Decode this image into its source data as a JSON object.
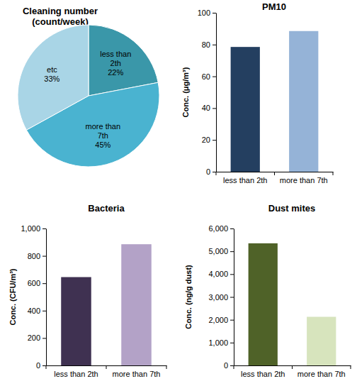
{
  "chart_data": [
    {
      "type": "pie",
      "title": "Cleaning number (count/week)",
      "categories": [
        "less than 2th",
        "more than 7th",
        "etc"
      ],
      "values": [
        22,
        45,
        33
      ],
      "value_labels": [
        "22%",
        "45%",
        "33%"
      ],
      "colors": [
        "#3a97a9",
        "#4ab3d0",
        "#a9d5e6"
      ],
      "data_labels": true
    },
    {
      "type": "bar",
      "title": "PM10",
      "ylabel": "Conc. (μg/m³)",
      "categories": [
        "less than 2th",
        "more than 7th"
      ],
      "values": [
        78.5,
        88.5
      ],
      "colors": [
        "#243f60",
        "#95b3d7"
      ],
      "ylim": [
        0,
        100
      ],
      "yticks": [
        0,
        20,
        40,
        60,
        80,
        100
      ],
      "grid": false
    },
    {
      "type": "bar",
      "title": "Bacteria",
      "ylabel": "Conc. (CFU/m³)",
      "categories": [
        "less than 2th",
        "more than 7th"
      ],
      "values": [
        645,
        885
      ],
      "colors": [
        "#3f3151",
        "#b3a2c7"
      ],
      "ylim": [
        0,
        1000
      ],
      "yticks": [
        0,
        200,
        400,
        600,
        800,
        {
          "value": 1000,
          "label": "1,000"
        }
      ],
      "grid": false
    },
    {
      "type": "bar",
      "title": "Dust mites",
      "ylabel": "Conc. (ng/g dust)",
      "categories": [
        "less than 2th",
        "more than 7th"
      ],
      "values": [
        5350,
        2130
      ],
      "colors": [
        "#4f6228",
        "#d7e4bd"
      ],
      "ylim": [
        0,
        6000
      ],
      "yticks": [
        0,
        {
          "value": 1000,
          "label": "1,000"
        },
        {
          "value": 2000,
          "label": "2,000"
        },
        {
          "value": 3000,
          "label": "3,000"
        },
        {
          "value": 4000,
          "label": "4,000"
        },
        {
          "value": 5000,
          "label": "5,000"
        },
        {
          "value": 6000,
          "label": "6,000"
        }
      ],
      "grid": false
    }
  ]
}
